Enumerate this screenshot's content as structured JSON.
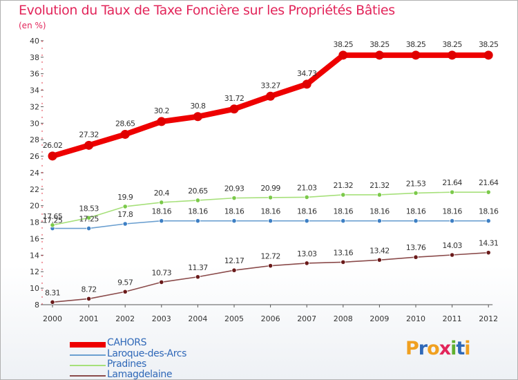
{
  "title": "Evolution du Taux de Taxe Foncière sur les Propriétés Bâties",
  "unit_label": "(en %)",
  "logo": {
    "letters": [
      "P",
      "r",
      "o",
      "x",
      "i",
      "t",
      "i"
    ],
    "colors": [
      "#f0a020",
      "#2f68b8",
      "#f0a020",
      "#e2255a",
      "#60b030",
      "#2f68b8",
      "#f0a020"
    ]
  },
  "chart_data": {
    "type": "line",
    "title": "Evolution du Taux de Taxe Foncière sur les Propriétés Bâties",
    "ylabel": "(en %)",
    "xlabel": "",
    "x": [
      "2000",
      "2001",
      "2002",
      "2003",
      "2004",
      "2005",
      "2006",
      "2007",
      "2008",
      "2009",
      "2010",
      "2011",
      "2012"
    ],
    "ylim": [
      8,
      40
    ],
    "yticks": [
      8,
      10,
      12,
      14,
      16,
      18,
      20,
      22,
      24,
      26,
      28,
      30,
      32,
      34,
      36,
      38,
      40
    ],
    "grid": false,
    "legend_position": "bottom-left",
    "series": [
      {
        "name": "CAHORS",
        "color": "#ee0000",
        "point_color": "#e00000",
        "width": "thick",
        "values": [
          26.02,
          27.32,
          28.65,
          30.2,
          30.8,
          31.72,
          33.27,
          34.73,
          38.25,
          38.25,
          38.25,
          38.25,
          38.25
        ],
        "labels": [
          "26.02",
          "27.32",
          "28.65",
          "30.2",
          "30.8",
          "31.72",
          "33.27",
          "34.73",
          "38.25",
          "38.25",
          "38.25",
          "38.25",
          "38.25"
        ]
      },
      {
        "name": "Laroque-des-Arcs",
        "color": "#6a9fd0",
        "point_color": "#3d7fc4",
        "width": "thin",
        "values": [
          17.25,
          17.25,
          17.8,
          18.16,
          18.16,
          18.16,
          18.16,
          18.16,
          18.16,
          18.16,
          18.16,
          18.16,
          18.16
        ],
        "labels": [
          "17.25",
          "17.25",
          "17.8",
          "18.16",
          "18.16",
          "18.16",
          "18.16",
          "18.16",
          "18.16",
          "18.16",
          "18.16",
          "18.16",
          "18.16"
        ]
      },
      {
        "name": "Pradines",
        "color": "#a6e07a",
        "point_color": "#7bc94a",
        "width": "thin",
        "values": [
          17.65,
          18.53,
          19.9,
          20.4,
          20.65,
          20.93,
          20.99,
          21.03,
          21.32,
          21.32,
          21.53,
          21.64,
          21.64
        ],
        "labels": [
          "17.65",
          "18.53",
          "19.9",
          "20.4",
          "20.65",
          "20.93",
          "20.99",
          "21.03",
          "21.32",
          "21.32",
          "21.53",
          "21.64",
          "21.64"
        ]
      },
      {
        "name": "Lamagdelaine",
        "color": "#8a4a4a",
        "point_color": "#6a1a1a",
        "width": "thin",
        "values": [
          8.31,
          8.72,
          9.57,
          10.73,
          11.37,
          12.17,
          12.72,
          13.03,
          13.16,
          13.42,
          13.76,
          14.03,
          14.31
        ],
        "labels": [
          "8.31",
          "8.72",
          "9.57",
          "10.73",
          "11.37",
          "12.17",
          "12.72",
          "13.03",
          "13.16",
          "13.42",
          "13.76",
          "14.03",
          "14.31"
        ]
      }
    ]
  }
}
